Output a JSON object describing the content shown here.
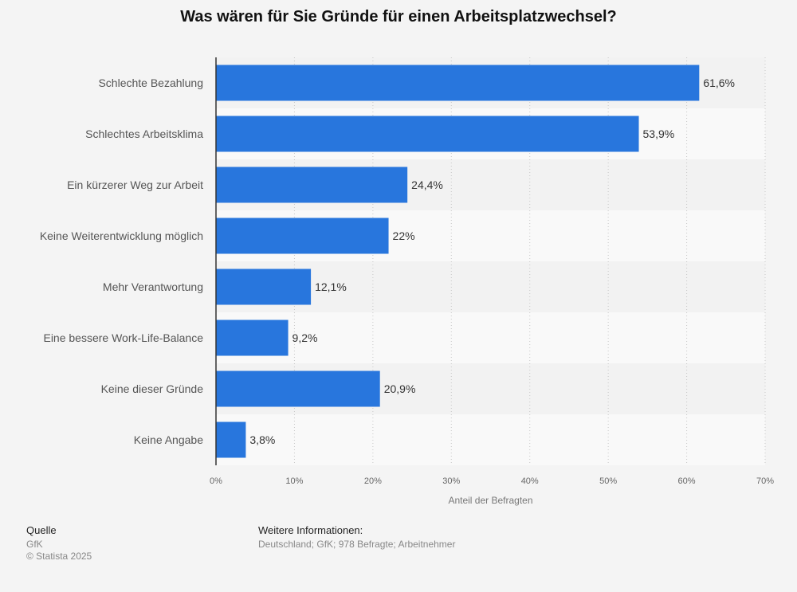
{
  "chart_data": {
    "type": "bar",
    "orientation": "horizontal",
    "title": "Was wären für Sie Gründe für einen Arbeitsplatzwechsel?",
    "xlabel": "Anteil der Befragten",
    "ylabel": "",
    "xlim": [
      0,
      70
    ],
    "ticks": [
      0,
      10,
      20,
      30,
      40,
      50,
      60,
      70
    ],
    "tick_labels": [
      "0%",
      "10%",
      "20%",
      "30%",
      "40%",
      "50%",
      "60%",
      "70%"
    ],
    "grid": true,
    "bar_color": "#2876dd",
    "categories": [
      "Schlechte Bezahlung",
      "Schlechtes Arbeitsklima",
      "Ein kürzerer Weg zur Arbeit",
      "Keine Weiterentwicklung möglich",
      "Mehr Verantwortung",
      "Eine bessere Work-Life-Balance",
      "Keine dieser Gründe",
      "Keine Angabe"
    ],
    "values": [
      61.6,
      53.9,
      24.4,
      22,
      12.1,
      9.2,
      20.9,
      3.8
    ],
    "value_labels": [
      "61,6%",
      "53,9%",
      "24,4%",
      "22%",
      "12,1%",
      "9,2%",
      "20,9%",
      "3,8%"
    ]
  },
  "footer": {
    "source_heading": "Quelle",
    "source_name": "GfK",
    "copyright": "© Statista 2025",
    "info_heading": "Weitere Informationen:",
    "info_text": "Deutschland; GfK; 978 Befragte; Arbeitnehmer"
  }
}
